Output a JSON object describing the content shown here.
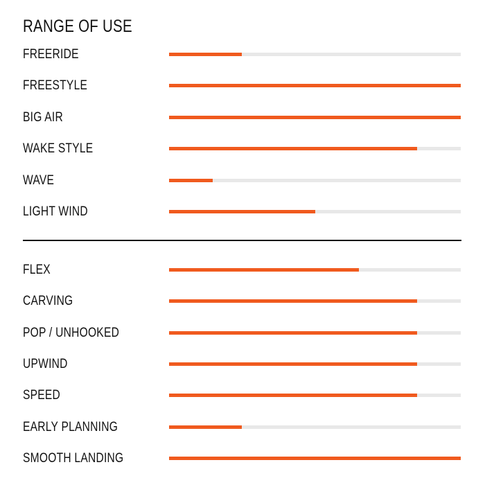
{
  "chart_data": {
    "type": "bar",
    "orientation": "horizontal",
    "title": "RANGE OF USE",
    "xlim": [
      0,
      100
    ],
    "colors": {
      "fill": "#f05a1e",
      "track": "#e8e8e8",
      "text": "#111111",
      "divider": "#111111"
    },
    "groups": [
      {
        "categories": [
          "FREERIDE",
          "FREESTYLE",
          "BIG AIR",
          "WAKE STYLE",
          "WAVE",
          "LIGHT WIND"
        ],
        "values": [
          25,
          100,
          100,
          85,
          15,
          50
        ]
      },
      {
        "categories": [
          "FLEX",
          "CARVING",
          "POP / UNHOOKED",
          "UPWIND",
          "SPEED",
          "EARLY PLANNING",
          "SMOOTH LANDING"
        ],
        "values": [
          65,
          85,
          85,
          85,
          85,
          25,
          100
        ]
      }
    ]
  }
}
